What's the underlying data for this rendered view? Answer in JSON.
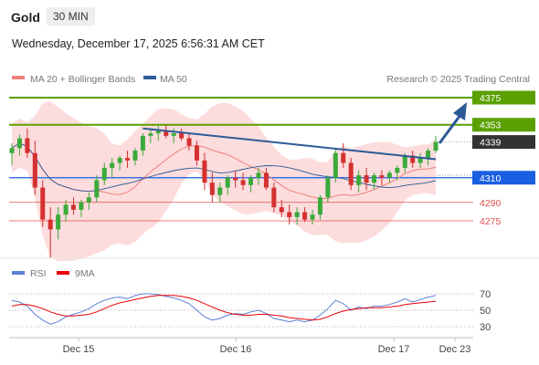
{
  "header": {
    "instrument": "Gold",
    "timeframe": "30 MIN",
    "datetime": "Wednesday, December 17, 2025 6:56:31 AM CET",
    "copyright": "Research © 2025 Trading Central"
  },
  "legend": [
    {
      "name": "MA 20 + Bollinger Bands",
      "color": "#f08080"
    },
    {
      "name": "MA 50",
      "color": "#2c5a96"
    }
  ],
  "rsi_legend": [
    {
      "name": "RSI",
      "color": "#5b7fd6"
    },
    {
      "name": "9MA",
      "color": "#e8000b"
    }
  ],
  "colors": {
    "target": "#5aa000",
    "pivot": "#1a5fe0",
    "support": "#e05050",
    "last": "#333333",
    "candle_up": "#3aaa3a",
    "candle_down": "#d43030",
    "trend_arrow": "#2c5a96"
  },
  "chart_data": {
    "type": "candlestick",
    "x_ticks": [
      "Dec 15",
      "Dec 16",
      "Dec 17",
      "Dec 23"
    ],
    "y_range": [
      4220,
      4395
    ],
    "levels": [
      {
        "value": 4375,
        "label": "4375",
        "kind": "target"
      },
      {
        "value": 4353,
        "label": "4353",
        "kind": "target"
      },
      {
        "value": 4339,
        "label": "4339",
        "kind": "last"
      },
      {
        "value": 4310,
        "label": "4310",
        "kind": "pivot"
      },
      {
        "value": 4290,
        "label": "4290",
        "kind": "support"
      },
      {
        "value": 4275,
        "label": "4275",
        "kind": "support"
      }
    ],
    "candles": [
      [
        4330,
        4338,
        4320,
        4334
      ],
      [
        4334,
        4345,
        4328,
        4342
      ],
      [
        4342,
        4350,
        4326,
        4330
      ],
      [
        4330,
        4340,
        4296,
        4302
      ],
      [
        4302,
        4308,
        4270,
        4276
      ],
      [
        4276,
        4286,
        4245,
        4268
      ],
      [
        4268,
        4286,
        4260,
        4280
      ],
      [
        4280,
        4292,
        4274,
        4288
      ],
      [
        4288,
        4294,
        4280,
        4284
      ],
      [
        4284,
        4292,
        4278,
        4290
      ],
      [
        4290,
        4298,
        4284,
        4294
      ],
      [
        4294,
        4312,
        4290,
        4308
      ],
      [
        4308,
        4322,
        4304,
        4318
      ],
      [
        4318,
        4326,
        4310,
        4322
      ],
      [
        4322,
        4328,
        4316,
        4326
      ],
      [
        4326,
        4332,
        4318,
        4324
      ],
      [
        4324,
        4334,
        4320,
        4332
      ],
      [
        4332,
        4346,
        4328,
        4344
      ],
      [
        4344,
        4350,
        4338,
        4346
      ],
      [
        4346,
        4352,
        4340,
        4348
      ],
      [
        4348,
        4353,
        4342,
        4344
      ],
      [
        4344,
        4350,
        4338,
        4346
      ],
      [
        4346,
        4350,
        4340,
        4342
      ],
      [
        4342,
        4346,
        4332,
        4336
      ],
      [
        4336,
        4340,
        4320,
        4324
      ],
      [
        4324,
        4330,
        4300,
        4306
      ],
      [
        4306,
        4314,
        4290,
        4296
      ],
      [
        4296,
        4306,
        4290,
        4302
      ],
      [
        4302,
        4312,
        4296,
        4310
      ],
      [
        4310,
        4316,
        4302,
        4308
      ],
      [
        4308,
        4314,
        4300,
        4304
      ],
      [
        4304,
        4312,
        4298,
        4310
      ],
      [
        4310,
        4318,
        4304,
        4314
      ],
      [
        4314,
        4318,
        4300,
        4302
      ],
      [
        4302,
        4306,
        4282,
        4286
      ],
      [
        4286,
        4292,
        4278,
        4282
      ],
      [
        4282,
        4288,
        4272,
        4278
      ],
      [
        4278,
        4286,
        4272,
        4282
      ],
      [
        4282,
        4286,
        4274,
        4276
      ],
      [
        4276,
        4284,
        4272,
        4280
      ],
      [
        4280,
        4296,
        4276,
        4294
      ],
      [
        4294,
        4312,
        4290,
        4310
      ],
      [
        4310,
        4334,
        4306,
        4330
      ],
      [
        4330,
        4338,
        4318,
        4322
      ],
      [
        4322,
        4326,
        4300,
        4304
      ],
      [
        4304,
        4316,
        4298,
        4312
      ],
      [
        4312,
        4318,
        4300,
        4306
      ],
      [
        4306,
        4314,
        4300,
        4312
      ],
      [
        4312,
        4316,
        4304,
        4310
      ],
      [
        4310,
        4316,
        4306,
        4314
      ],
      [
        4314,
        4320,
        4308,
        4318
      ],
      [
        4318,
        4330,
        4314,
        4328
      ],
      [
        4328,
        4332,
        4318,
        4322
      ],
      [
        4322,
        4330,
        4318,
        4326
      ],
      [
        4326,
        4334,
        4320,
        4332
      ],
      [
        4332,
        4344,
        4330,
        4339
      ]
    ],
    "rsi": [
      62,
      60,
      55,
      45,
      38,
      33,
      36,
      42,
      45,
      48,
      52,
      58,
      62,
      65,
      66,
      64,
      68,
      70,
      70,
      69,
      67,
      65,
      62,
      58,
      50,
      42,
      38,
      40,
      44,
      46,
      45,
      48,
      50,
      46,
      40,
      38,
      36,
      38,
      36,
      38,
      44,
      52,
      62,
      58,
      50,
      54,
      52,
      55,
      55,
      57,
      60,
      64,
      60,
      63,
      66,
      68
    ],
    "rsi_ma": [
      55,
      57,
      57,
      55,
      52,
      48,
      45,
      43,
      43,
      44,
      45,
      48,
      52,
      56,
      59,
      61,
      63,
      65,
      67,
      68,
      68,
      68,
      67,
      65,
      62,
      58,
      54,
      50,
      47,
      45,
      44,
      44,
      45,
      45,
      44,
      43,
      41,
      40,
      39,
      38,
      39,
      42,
      46,
      49,
      51,
      52,
      53,
      53,
      53,
      54,
      55,
      57,
      58,
      59,
      60,
      61
    ],
    "rsi_levels": [
      70,
      50,
      30
    ]
  }
}
